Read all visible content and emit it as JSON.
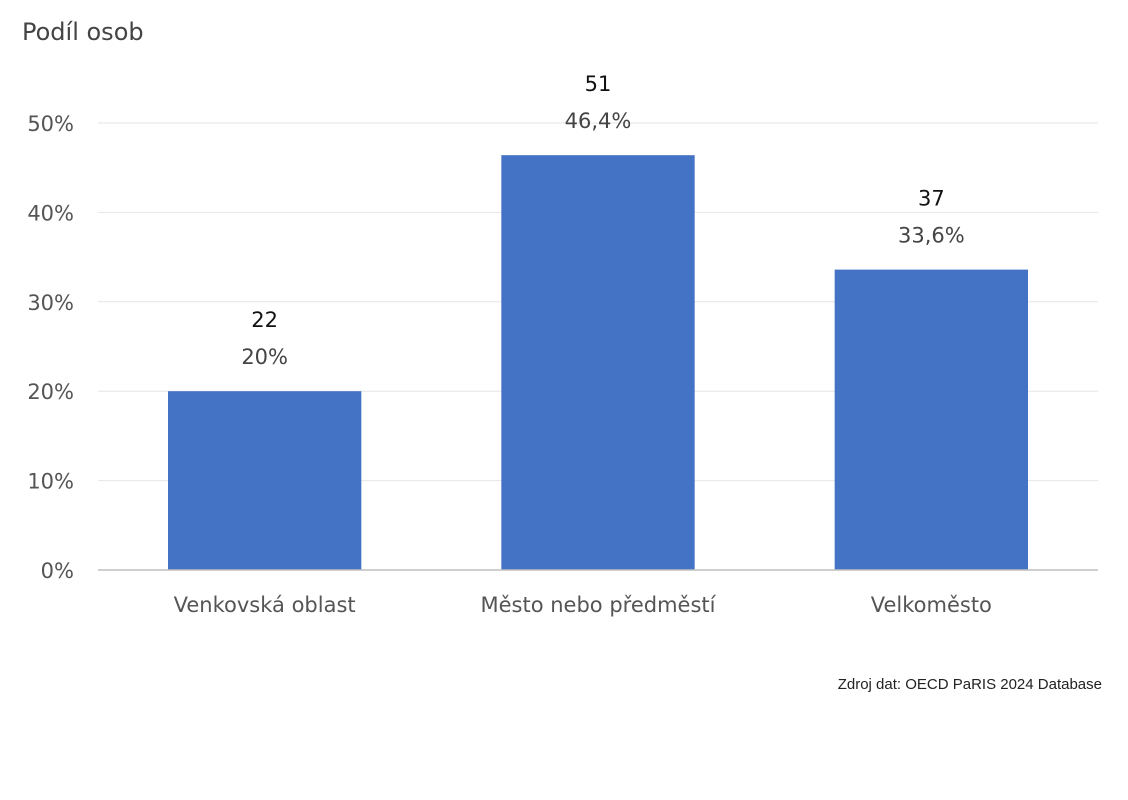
{
  "chart_data": {
    "type": "bar",
    "title": "",
    "ylabel": "Podíl osob",
    "xlabel": "",
    "ylim": [
      0,
      50
    ],
    "ytick_values": [
      0,
      10,
      20,
      30,
      40,
      50
    ],
    "ytick_labels": [
      "0%",
      "10%",
      "20%",
      "30%",
      "40%",
      "50%"
    ],
    "grid": true,
    "categories": [
      "Venkovská oblast",
      "Město nebo předměstí",
      "Velkoměsto"
    ],
    "values": [
      20,
      46.4,
      33.6
    ],
    "value_labels": [
      "20%",
      "46,4%",
      "33,6%"
    ],
    "counts": [
      "22",
      "51",
      "37"
    ]
  },
  "source": "Zdroj dat: OECD PaRIS 2024 Database",
  "colors": {
    "bar": "#4472c4",
    "grid": "#e6e6e6",
    "axis": "#bfbfbf",
    "tick_text": "#555555",
    "value_text": "#444444",
    "count_text": "#111111"
  }
}
